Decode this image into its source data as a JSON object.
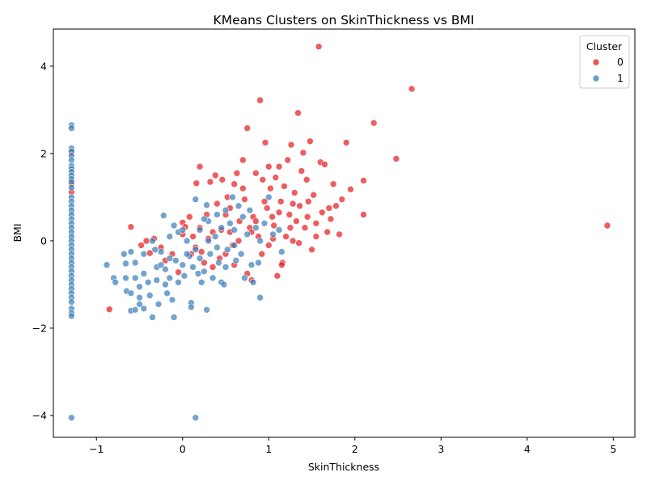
{
  "chart_data": {
    "type": "scatter",
    "title": "KMeans Clusters on SkinThickness vs BMI",
    "xlabel": "SkinThickness",
    "ylabel": "BMI",
    "xlim": [
      -1.5,
      5.25
    ],
    "ylim": [
      -4.5,
      4.85
    ],
    "xticks": [
      -1,
      0,
      1,
      2,
      3,
      4,
      5
    ],
    "yticks": [
      -4,
      -2,
      0,
      2,
      4
    ],
    "grid": false,
    "legend": {
      "title": "Cluster",
      "placement": "top-right"
    },
    "series": [
      {
        "name": "0",
        "color": "#e41a1c",
        "points": [
          [
            -1.29,
            1.3
          ],
          [
            -1.29,
            1.12
          ],
          [
            -1.29,
            2.02
          ],
          [
            -0.85,
            -1.57
          ],
          [
            -0.6,
            0.32
          ],
          [
            -0.48,
            -0.1
          ],
          [
            -0.42,
            0.0
          ],
          [
            -0.38,
            -0.28
          ],
          [
            -0.33,
            0.05
          ],
          [
            -0.25,
            -0.15
          ],
          [
            -0.2,
            -0.45
          ],
          [
            -0.12,
            -0.3
          ],
          [
            -0.05,
            -0.72
          ],
          [
            0.0,
            0.42
          ],
          [
            0.03,
            0.32
          ],
          [
            0.08,
            0.55
          ],
          [
            0.12,
            0.1
          ],
          [
            0.16,
            1.32
          ],
          [
            0.2,
            1.7
          ],
          [
            0.22,
            -0.25
          ],
          [
            0.25,
            -0.5
          ],
          [
            0.28,
            0.6
          ],
          [
            0.32,
            1.35
          ],
          [
            0.35,
            0.2
          ],
          [
            0.38,
            1.5
          ],
          [
            0.4,
            0.85
          ],
          [
            0.43,
            -0.4
          ],
          [
            0.46,
            1.4
          ],
          [
            0.5,
            0.6
          ],
          [
            0.52,
            1.0
          ],
          [
            0.55,
            0.2
          ],
          [
            0.58,
            -0.1
          ],
          [
            0.6,
            1.3
          ],
          [
            0.63,
            1.55
          ],
          [
            0.66,
            0.45
          ],
          [
            0.7,
            1.85
          ],
          [
            0.72,
            0.95
          ],
          [
            0.75,
            2.58
          ],
          [
            0.78,
            0.3
          ],
          [
            0.8,
            -0.9
          ],
          [
            0.82,
            0.55
          ],
          [
            0.85,
            1.55
          ],
          [
            0.88,
            0.1
          ],
          [
            0.9,
            3.22
          ],
          [
            0.93,
            1.4
          ],
          [
            0.96,
            2.25
          ],
          [
            0.98,
            0.75
          ],
          [
            1.0,
            -0.1
          ],
          [
            1.02,
            1.2
          ],
          [
            1.04,
            0.55
          ],
          [
            1.06,
            0.35
          ],
          [
            1.08,
            1.45
          ],
          [
            1.1,
            -0.8
          ],
          [
            1.12,
            1.7
          ],
          [
            1.14,
            0.9
          ],
          [
            1.16,
            -0.5
          ],
          [
            1.18,
            1.25
          ],
          [
            1.2,
            0.1
          ],
          [
            1.22,
            1.85
          ],
          [
            1.24,
            0.6
          ],
          [
            1.26,
            2.2
          ],
          [
            1.28,
            0.0
          ],
          [
            1.3,
            1.1
          ],
          [
            1.32,
            0.45
          ],
          [
            1.34,
            2.93
          ],
          [
            1.36,
            0.8
          ],
          [
            1.38,
            1.6
          ],
          [
            1.4,
            2.02
          ],
          [
            1.42,
            0.3
          ],
          [
            1.44,
            1.4
          ],
          [
            1.46,
            0.9
          ],
          [
            1.48,
            2.28
          ],
          [
            1.5,
            -0.2
          ],
          [
            1.52,
            1.05
          ],
          [
            1.55,
            0.4
          ],
          [
            1.58,
            4.45
          ],
          [
            1.6,
            1.8
          ],
          [
            1.62,
            0.65
          ],
          [
            1.65,
            1.75
          ],
          [
            1.68,
            0.2
          ],
          [
            1.7,
            0.75
          ],
          [
            1.72,
            0.5
          ],
          [
            1.75,
            1.3
          ],
          [
            1.78,
            0.8
          ],
          [
            1.82,
            0.15
          ],
          [
            1.85,
            0.95
          ],
          [
            1.9,
            2.25
          ],
          [
            1.95,
            1.18
          ],
          [
            2.1,
            1.38
          ],
          [
            2.1,
            0.6
          ],
          [
            2.22,
            2.7
          ],
          [
            2.48,
            1.88
          ],
          [
            2.66,
            3.48
          ],
          [
            4.93,
            0.35
          ],
          [
            0.0,
            0.15
          ],
          [
            0.1,
            -0.3
          ],
          [
            0.35,
            -0.6
          ],
          [
            0.5,
            -0.3
          ],
          [
            0.6,
            -0.55
          ],
          [
            0.75,
            -0.75
          ],
          [
            0.95,
            0.9
          ],
          [
            1.05,
            0.05
          ],
          [
            1.15,
            -0.55
          ],
          [
            1.25,
            0.3
          ],
          [
            1.35,
            -0.05
          ],
          [
            1.45,
            0.55
          ],
          [
            1.55,
            0.1
          ],
          [
            0.45,
            0.25
          ],
          [
            0.65,
            0.0
          ],
          [
            0.85,
            0.45
          ],
          [
            0.92,
            -0.3
          ],
          [
            1.12,
            0.65
          ],
          [
            1.28,
            0.85
          ],
          [
            0.7,
            1.2
          ],
          [
            0.3,
            0.05
          ],
          [
            0.2,
            0.3
          ],
          [
            0.15,
            -0.15
          ],
          [
            0.55,
            0.75
          ],
          [
            0.8,
            0.2
          ],
          [
            1.0,
            1.7
          ]
        ]
      },
      {
        "name": "1",
        "color": "#377eb8",
        "points": [
          [
            -1.29,
            2.65
          ],
          [
            -1.29,
            2.58
          ],
          [
            -1.29,
            2.12
          ],
          [
            -1.29,
            2.05
          ],
          [
            -1.29,
            1.95
          ],
          [
            -1.29,
            1.85
          ],
          [
            -1.29,
            1.72
          ],
          [
            -1.29,
            1.65
          ],
          [
            -1.29,
            1.58
          ],
          [
            -1.29,
            1.5
          ],
          [
            -1.29,
            1.42
          ],
          [
            -1.29,
            1.35
          ],
          [
            -1.29,
            1.22
          ],
          [
            -1.29,
            1.0
          ],
          [
            -1.29,
            0.9
          ],
          [
            -1.29,
            0.8
          ],
          [
            -1.29,
            0.7
          ],
          [
            -1.29,
            0.6
          ],
          [
            -1.29,
            0.5
          ],
          [
            -1.29,
            0.4
          ],
          [
            -1.29,
            0.3
          ],
          [
            -1.29,
            0.2
          ],
          [
            -1.29,
            0.1
          ],
          [
            -1.29,
            0.0
          ],
          [
            -1.29,
            -0.1
          ],
          [
            -1.29,
            -0.2
          ],
          [
            -1.29,
            -0.3
          ],
          [
            -1.29,
            -0.4
          ],
          [
            -1.29,
            -0.5
          ],
          [
            -1.29,
            -0.6
          ],
          [
            -1.29,
            -0.7
          ],
          [
            -1.29,
            -0.8
          ],
          [
            -1.29,
            -0.9
          ],
          [
            -1.29,
            -1.0
          ],
          [
            -1.29,
            -1.1
          ],
          [
            -1.29,
            -1.2
          ],
          [
            -1.29,
            -1.3
          ],
          [
            -1.29,
            -1.4
          ],
          [
            -1.29,
            -1.55
          ],
          [
            -1.29,
            -1.65
          ],
          [
            -1.29,
            -1.72
          ],
          [
            -1.29,
            -4.05
          ],
          [
            0.15,
            -4.05
          ],
          [
            -0.88,
            -0.55
          ],
          [
            -0.8,
            -0.85
          ],
          [
            -0.78,
            -0.95
          ],
          [
            -0.68,
            -0.3
          ],
          [
            -0.66,
            -0.52
          ],
          [
            -0.66,
            -0.85
          ],
          [
            -0.65,
            -1.15
          ],
          [
            -0.6,
            -0.25
          ],
          [
            -0.6,
            -1.2
          ],
          [
            -0.6,
            -1.6
          ],
          [
            -0.55,
            -0.5
          ],
          [
            -0.55,
            -0.85
          ],
          [
            -0.55,
            -1.58
          ],
          [
            -0.5,
            -1.05
          ],
          [
            -0.5,
            -1.3
          ],
          [
            -0.5,
            -1.45
          ],
          [
            -0.45,
            -0.3
          ],
          [
            -0.45,
            -0.75
          ],
          [
            -0.45,
            -1.55
          ],
          [
            -0.4,
            -0.95
          ],
          [
            -0.38,
            -1.25
          ],
          [
            -0.35,
            -1.75
          ],
          [
            -0.32,
            -0.2
          ],
          [
            -0.3,
            -0.6
          ],
          [
            -0.3,
            -0.9
          ],
          [
            -0.28,
            -1.45
          ],
          [
            -0.25,
            -0.55
          ],
          [
            -0.22,
            0.58
          ],
          [
            -0.2,
            -0.65
          ],
          [
            -0.2,
            -1.0
          ],
          [
            -0.18,
            -1.2
          ],
          [
            -0.15,
            0.1
          ],
          [
            -0.15,
            -0.85
          ],
          [
            -0.12,
            -1.35
          ],
          [
            -0.1,
            -1.75
          ],
          [
            -0.08,
            -0.45
          ],
          [
            -0.05,
            0.2
          ],
          [
            -0.05,
            -0.95
          ],
          [
            0.0,
            -0.55
          ],
          [
            0.02,
            -0.8
          ],
          [
            0.05,
            0.0
          ],
          [
            0.08,
            -0.35
          ],
          [
            0.1,
            -1.42
          ],
          [
            0.1,
            -1.52
          ],
          [
            0.12,
            -0.6
          ],
          [
            0.15,
            0.95
          ],
          [
            0.15,
            -0.2
          ],
          [
            0.18,
            -0.75
          ],
          [
            0.2,
            0.25
          ],
          [
            0.2,
            -0.4
          ],
          [
            0.22,
            -0.95
          ],
          [
            0.25,
            -0.7
          ],
          [
            0.28,
            0.82
          ],
          [
            0.28,
            -1.58
          ],
          [
            0.3,
            0.45
          ],
          [
            0.32,
            -0.3
          ],
          [
            0.35,
            -0.85
          ],
          [
            0.38,
            0.1
          ],
          [
            0.4,
            0.6
          ],
          [
            0.42,
            -0.5
          ],
          [
            0.45,
            0.3
          ],
          [
            0.45,
            -0.95
          ],
          [
            0.48,
            -1.0
          ],
          [
            0.5,
            0.7
          ],
          [
            0.52,
            -0.2
          ],
          [
            0.55,
            0.4
          ],
          [
            0.58,
            1.0
          ],
          [
            0.6,
            -0.1
          ],
          [
            0.62,
            -0.45
          ],
          [
            0.65,
            0.8
          ],
          [
            0.68,
            -0.3
          ],
          [
            0.7,
            0.55
          ],
          [
            0.72,
            -0.85
          ],
          [
            0.75,
            0.15
          ],
          [
            0.78,
            0.7
          ],
          [
            0.8,
            -0.55
          ],
          [
            0.82,
            -0.95
          ],
          [
            0.85,
            0.3
          ],
          [
            0.88,
            -0.5
          ],
          [
            0.9,
            0.0
          ],
          [
            0.9,
            -1.3
          ],
          [
            0.95,
            0.4
          ],
          [
            1.0,
            1.0
          ],
          [
            1.05,
            0.15
          ],
          [
            1.12,
            0.25
          ],
          [
            1.15,
            -0.25
          ],
          [
            -0.35,
            0.0
          ],
          [
            -0.1,
            0.35
          ],
          [
            0.0,
            0.25
          ],
          [
            0.05,
            -0.3
          ],
          [
            0.3,
            0.0
          ],
          [
            0.6,
            0.25
          ],
          [
            -0.25,
            -0.25
          ],
          [
            0.5,
            -0.6
          ],
          [
            0.4,
            -0.15
          ],
          [
            -0.15,
            -0.4
          ],
          [
            0.25,
            0.5
          ]
        ]
      }
    ]
  }
}
